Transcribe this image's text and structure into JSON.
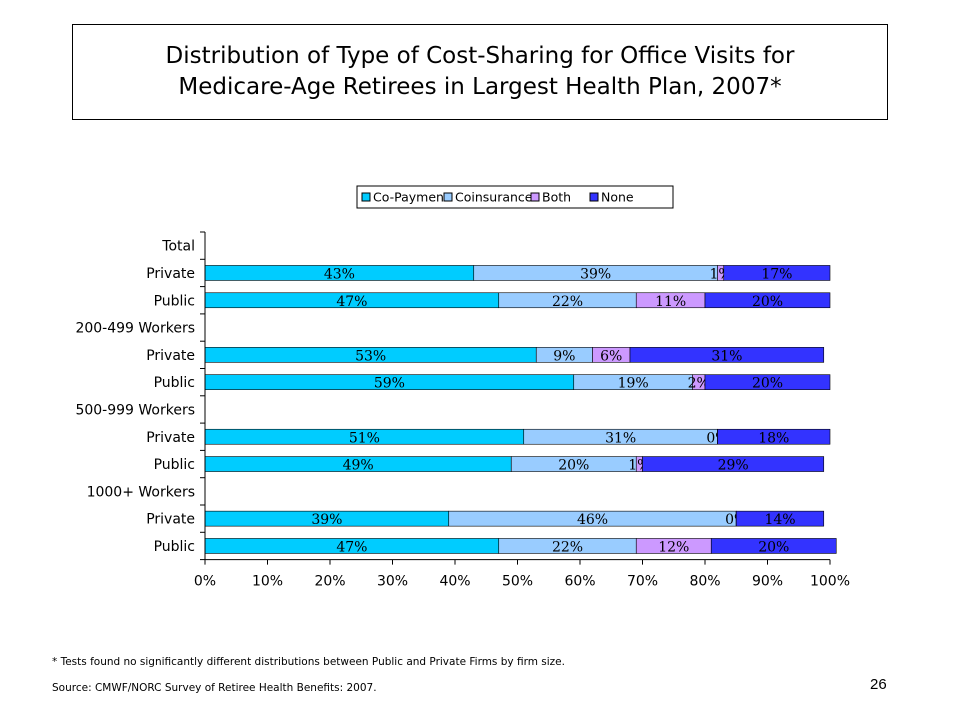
{
  "chart_data": {
    "type": "bar",
    "orientation": "horizontal",
    "stacked": true,
    "title": "Distribution of Type of Cost-Sharing for Office Visits for Medicare-Age Retirees in Largest Health Plan, 2007*",
    "title_lines": [
      "Distribution of Type of Cost-Sharing for Office Visits for",
      "Medicare-Age Retirees in Largest Health Plan, 2007*"
    ],
    "categories": [
      "Total",
      "Private",
      "Public",
      "200-499 Workers",
      "Private",
      "Public",
      "500-999 Workers",
      "Private",
      "Public",
      "1000+ Workers",
      "Private",
      "Public"
    ],
    "series": [
      {
        "name": "Co-Payment",
        "color": "#00ccff",
        "values": [
          null,
          43,
          47,
          null,
          53,
          59,
          null,
          51,
          49,
          null,
          39,
          47
        ]
      },
      {
        "name": "Coinsurance",
        "color": "#99ccff",
        "values": [
          null,
          39,
          22,
          null,
          9,
          19,
          null,
          31,
          20,
          null,
          46,
          22
        ]
      },
      {
        "name": "Both",
        "color": "#cc99ff",
        "values": [
          null,
          1,
          11,
          null,
          6,
          2,
          null,
          0,
          1,
          null,
          0,
          12
        ]
      },
      {
        "name": "None",
        "color": "#3333ff",
        "values": [
          null,
          17,
          20,
          null,
          31,
          20,
          null,
          18,
          29,
          null,
          14,
          20
        ]
      }
    ],
    "data_labels": [
      null,
      [
        "43%",
        "39%",
        "1%",
        "17%"
      ],
      [
        "47%",
        "22%",
        "11%",
        "20%"
      ],
      null,
      [
        "53%",
        "9%",
        "6%",
        "31%"
      ],
      [
        "59%",
        "19%",
        "2%",
        "20%"
      ],
      null,
      [
        "51%",
        "31%",
        "0%",
        "18%"
      ],
      [
        "49%",
        "20%",
        "1%",
        "29%"
      ],
      null,
      [
        "39%",
        "46%",
        "0%",
        "14%"
      ],
      [
        "47%",
        "22%",
        "12%",
        "20%"
      ]
    ],
    "xlim": [
      0,
      100
    ],
    "x_ticks": [
      "0%",
      "10%",
      "20%",
      "30%",
      "40%",
      "50%",
      "60%",
      "70%",
      "80%",
      "90%",
      "100%"
    ],
    "xlabel": "",
    "ylabel": "",
    "grid": false,
    "legend_position": "top"
  },
  "footnote": "* Tests found no significantly different distributions between Public and Private Firms by firm size.",
  "source": "Source: CMWF/NORC Survey of Retiree Health Benefits: 2007.",
  "page_number": "26"
}
